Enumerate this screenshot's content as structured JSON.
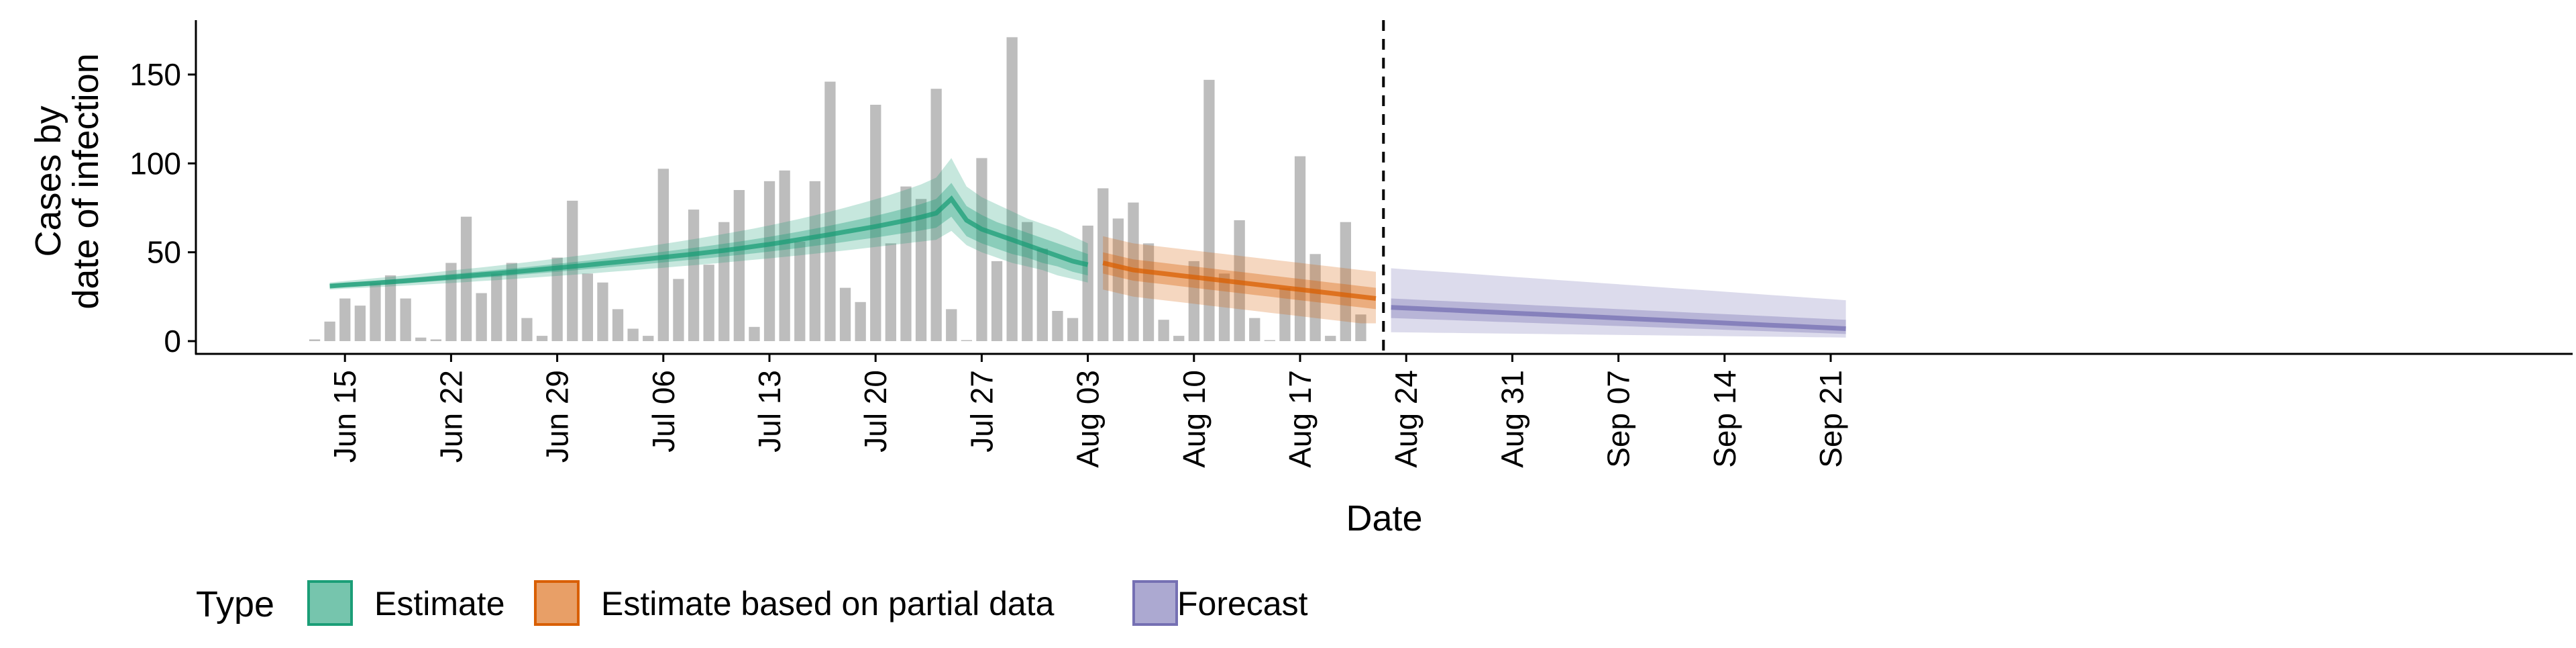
{
  "chart_data": {
    "type": "bar",
    "title": "",
    "xlabel": "Date",
    "ylabel_lines": [
      "Cases by",
      "date of infection"
    ],
    "ylim": [
      -6,
      180
    ],
    "yticks": [
      0,
      50,
      100,
      150
    ],
    "x_tick_labels": [
      "Jun 15",
      "Jun 22",
      "Jun 29",
      "Jul 06",
      "Jul 13",
      "Jul 20",
      "Jul 27",
      "Aug 03",
      "Aug 10",
      "Aug 17",
      "Aug 24",
      "Aug 31",
      "Sep 07",
      "Sep 14",
      "Sep 21"
    ],
    "x_start": "Jun 13",
    "bars": [
      1,
      11,
      24,
      20,
      33,
      37,
      24,
      2,
      1,
      44,
      70,
      27,
      38,
      44,
      13,
      3,
      47,
      79,
      38,
      33,
      18,
      7,
      3,
      97,
      35,
      74,
      43,
      67,
      85,
      8,
      90,
      96,
      56,
      90,
      146,
      30,
      22,
      133,
      55,
      87,
      80,
      142,
      18,
      0,
      103,
      45,
      171,
      67,
      52,
      17,
      13,
      65,
      86,
      69,
      78,
      55,
      12,
      3,
      45,
      147,
      38,
      68,
      13,
      0,
      30,
      104,
      49,
      3,
      67,
      15
    ],
    "estimate": {
      "start": 1,
      "end": 51,
      "median": [
        31.0,
        31.6,
        32.1,
        32.7,
        33.3,
        33.9,
        34.6,
        35.3,
        36.0,
        36.7,
        37.4,
        38.1,
        38.8,
        39.6,
        40.4,
        41.2,
        42.0,
        42.8,
        43.7,
        44.5,
        45.4,
        46.3,
        47.2,
        48.1,
        49.0,
        50.0,
        51.0,
        52.1,
        53.3,
        54.5,
        55.8,
        57.2,
        58.6,
        60.0,
        61.5,
        63.0,
        64.5,
        66.2,
        67.9,
        69.8,
        72.0,
        80.0,
        68.0,
        63.0,
        60.0,
        57.0,
        54.0,
        51.0,
        48.0,
        45.0,
        43.0
      ],
      "inner_lo": [
        30.0,
        30.5,
        31.0,
        31.5,
        32.0,
        32.5,
        33.1,
        33.7,
        34.3,
        35.0,
        35.6,
        36.2,
        36.9,
        37.6,
        38.3,
        39.0,
        39.7,
        40.5,
        41.2,
        42.0,
        42.7,
        43.5,
        44.3,
        45.1,
        45.9,
        46.7,
        47.6,
        48.5,
        49.4,
        50.4,
        51.4,
        52.5,
        53.6,
        54.7,
        55.9,
        57.1,
        58.3,
        59.6,
        60.9,
        62.3,
        63.8,
        70.0,
        59.0,
        55.0,
        52.0,
        49.0,
        47.0,
        44.0,
        42.0,
        39.0,
        37.0
      ],
      "inner_hi": [
        32.0,
        32.7,
        33.3,
        34.0,
        34.7,
        35.4,
        36.1,
        36.9,
        37.7,
        38.5,
        39.3,
        40.1,
        40.9,
        41.7,
        42.6,
        43.5,
        44.4,
        45.3,
        46.3,
        47.3,
        48.3,
        49.3,
        50.3,
        51.4,
        52.5,
        53.6,
        54.8,
        56.0,
        57.3,
        58.7,
        60.2,
        61.7,
        63.3,
        65.0,
        66.8,
        68.6,
        70.5,
        72.6,
        74.8,
        77.1,
        80.0,
        89.0,
        76.0,
        71.0,
        67.0,
        64.0,
        61.0,
        58.0,
        55.0,
        52.0,
        49.0
      ],
      "outer_lo": [
        29.0,
        29.5,
        29.9,
        30.3,
        30.8,
        31.2,
        31.7,
        32.2,
        32.7,
        33.2,
        33.8,
        34.3,
        34.9,
        35.5,
        36.1,
        36.7,
        37.3,
        37.9,
        38.6,
        39.3,
        39.9,
        40.6,
        41.3,
        42.0,
        42.7,
        43.4,
        44.2,
        45.0,
        45.8,
        46.6,
        47.4,
        48.3,
        49.2,
        50.1,
        51.0,
        52.0,
        53.0,
        54.0,
        55.0,
        56.0,
        57.0,
        62.0,
        54.0,
        50.0,
        47.0,
        44.0,
        42.0,
        40.0,
        37.0,
        35.0,
        33.0
      ],
      "outer_hi": [
        33.0,
        33.8,
        34.6,
        35.4,
        36.2,
        37.0,
        37.9,
        38.8,
        39.7,
        40.6,
        41.5,
        42.4,
        43.4,
        44.4,
        45.4,
        46.5,
        47.6,
        48.7,
        49.8,
        51.0,
        52.2,
        53.4,
        54.7,
        56.0,
        57.4,
        58.8,
        60.3,
        61.8,
        63.4,
        65.1,
        66.9,
        68.8,
        70.8,
        72.9,
        75.1,
        77.4,
        79.8,
        82.4,
        85.2,
        88.2,
        92.0,
        103.0,
        87.0,
        81.0,
        77.0,
        73.0,
        69.0,
        66.0,
        63.0,
        59.0,
        55.0
      ]
    },
    "partial": {
      "start": 52,
      "end": 70,
      "median": [
        44,
        42,
        40,
        39,
        38,
        37,
        36,
        35,
        34,
        33,
        32,
        31,
        30,
        29,
        28,
        27,
        26,
        25,
        24
      ],
      "inner_lo": [
        38,
        36,
        34,
        33,
        32,
        31,
        30,
        29,
        28,
        27,
        26,
        25,
        24,
        23,
        22,
        21,
        20,
        19,
        18
      ],
      "inner_hi": [
        50,
        48,
        46,
        45,
        44,
        43,
        42,
        41,
        40,
        39,
        38,
        37,
        36,
        35,
        34,
        33,
        32,
        31,
        30
      ],
      "outer_lo": [
        29,
        27,
        25,
        24,
        23,
        22,
        21,
        20,
        19,
        18,
        17,
        16,
        15,
        14,
        13,
        12,
        11,
        10,
        10
      ],
      "outer_hi": [
        59,
        57,
        55,
        54,
        53,
        52,
        51,
        50,
        49,
        48,
        47,
        46,
        45,
        44,
        43,
        42,
        41,
        40,
        39
      ]
    },
    "forecast": {
      "start": 71,
      "end": 101,
      "median": [
        19.0,
        18.6,
        18.2,
        17.8,
        17.4,
        17.0,
        16.6,
        16.2,
        15.8,
        15.4,
        15.0,
        14.6,
        14.2,
        13.8,
        13.4,
        13.0,
        12.6,
        12.2,
        11.8,
        11.4,
        11.0,
        10.6,
        10.2,
        9.8,
        9.4,
        9.0,
        8.6,
        8.2,
        7.8,
        7.4,
        7.0
      ],
      "inner_lo": [
        13.0,
        12.7,
        12.4,
        12.1,
        11.8,
        11.5,
        11.2,
        10.9,
        10.6,
        10.3,
        10.0,
        9.7,
        9.4,
        9.1,
        8.8,
        8.5,
        8.2,
        7.9,
        7.6,
        7.3,
        7.0,
        6.7,
        6.4,
        6.1,
        5.8,
        5.5,
        5.2,
        4.9,
        4.6,
        4.3,
        4.0
      ],
      "inner_hi": [
        24.0,
        23.6,
        23.2,
        22.8,
        22.4,
        22.0,
        21.6,
        21.2,
        20.8,
        20.4,
        20.0,
        19.6,
        19.2,
        18.8,
        18.4,
        18.0,
        17.6,
        17.2,
        16.8,
        16.4,
        16.0,
        15.6,
        15.2,
        14.8,
        14.4,
        14.0,
        13.6,
        13.2,
        12.8,
        12.4,
        12.0
      ],
      "outer_lo": [
        5.0,
        4.9,
        4.8,
        4.7,
        4.6,
        4.5,
        4.4,
        4.3,
        4.2,
        4.1,
        4.0,
        3.9,
        3.8,
        3.7,
        3.6,
        3.5,
        3.4,
        3.3,
        3.2,
        3.1,
        3.0,
        2.9,
        2.8,
        2.7,
        2.6,
        2.5,
        2.4,
        2.3,
        2.2,
        2.1,
        2.0
      ],
      "outer_hi": [
        41.0,
        40.4,
        39.8,
        39.2,
        38.6,
        38.0,
        37.4,
        36.8,
        36.2,
        35.6,
        35.0,
        34.4,
        33.8,
        33.2,
        32.6,
        32.0,
        31.4,
        30.8,
        30.2,
        29.6,
        29.0,
        28.4,
        27.8,
        27.2,
        26.6,
        26.0,
        25.4,
        24.8,
        24.2,
        23.6,
        23.0
      ]
    },
    "vline_at_day": 70.5,
    "colors": {
      "bar": "#bdbdbd",
      "estimate": "#1b9e77",
      "partial": "#d95f02",
      "forecast": "#7570b3"
    },
    "grid": false,
    "legend_position": "bottom-left",
    "legend": {
      "title": "Type",
      "items": [
        "Estimate",
        "Estimate based on partial data",
        "Forecast"
      ]
    }
  }
}
